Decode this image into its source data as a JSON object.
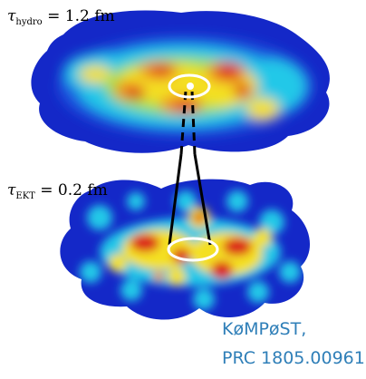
{
  "colors": {
    "cold": "#1428c8",
    "mid": "#22c8e8",
    "warm": "#f4e020",
    "hot": "#dc1e1e",
    "ring": "#ffffff",
    "connector": "#000000",
    "citation": "#2f7fb8"
  },
  "labels": {
    "top": {
      "symbol": "τ",
      "sub": "hydro",
      "value": "= 1.2 fm"
    },
    "bottom": {
      "symbol": "τ",
      "sub": "EKT",
      "value": "= 0.2 fm"
    }
  },
  "citation": {
    "line1": "KøMPøST,",
    "line2": "PRC 1805.00961"
  }
}
